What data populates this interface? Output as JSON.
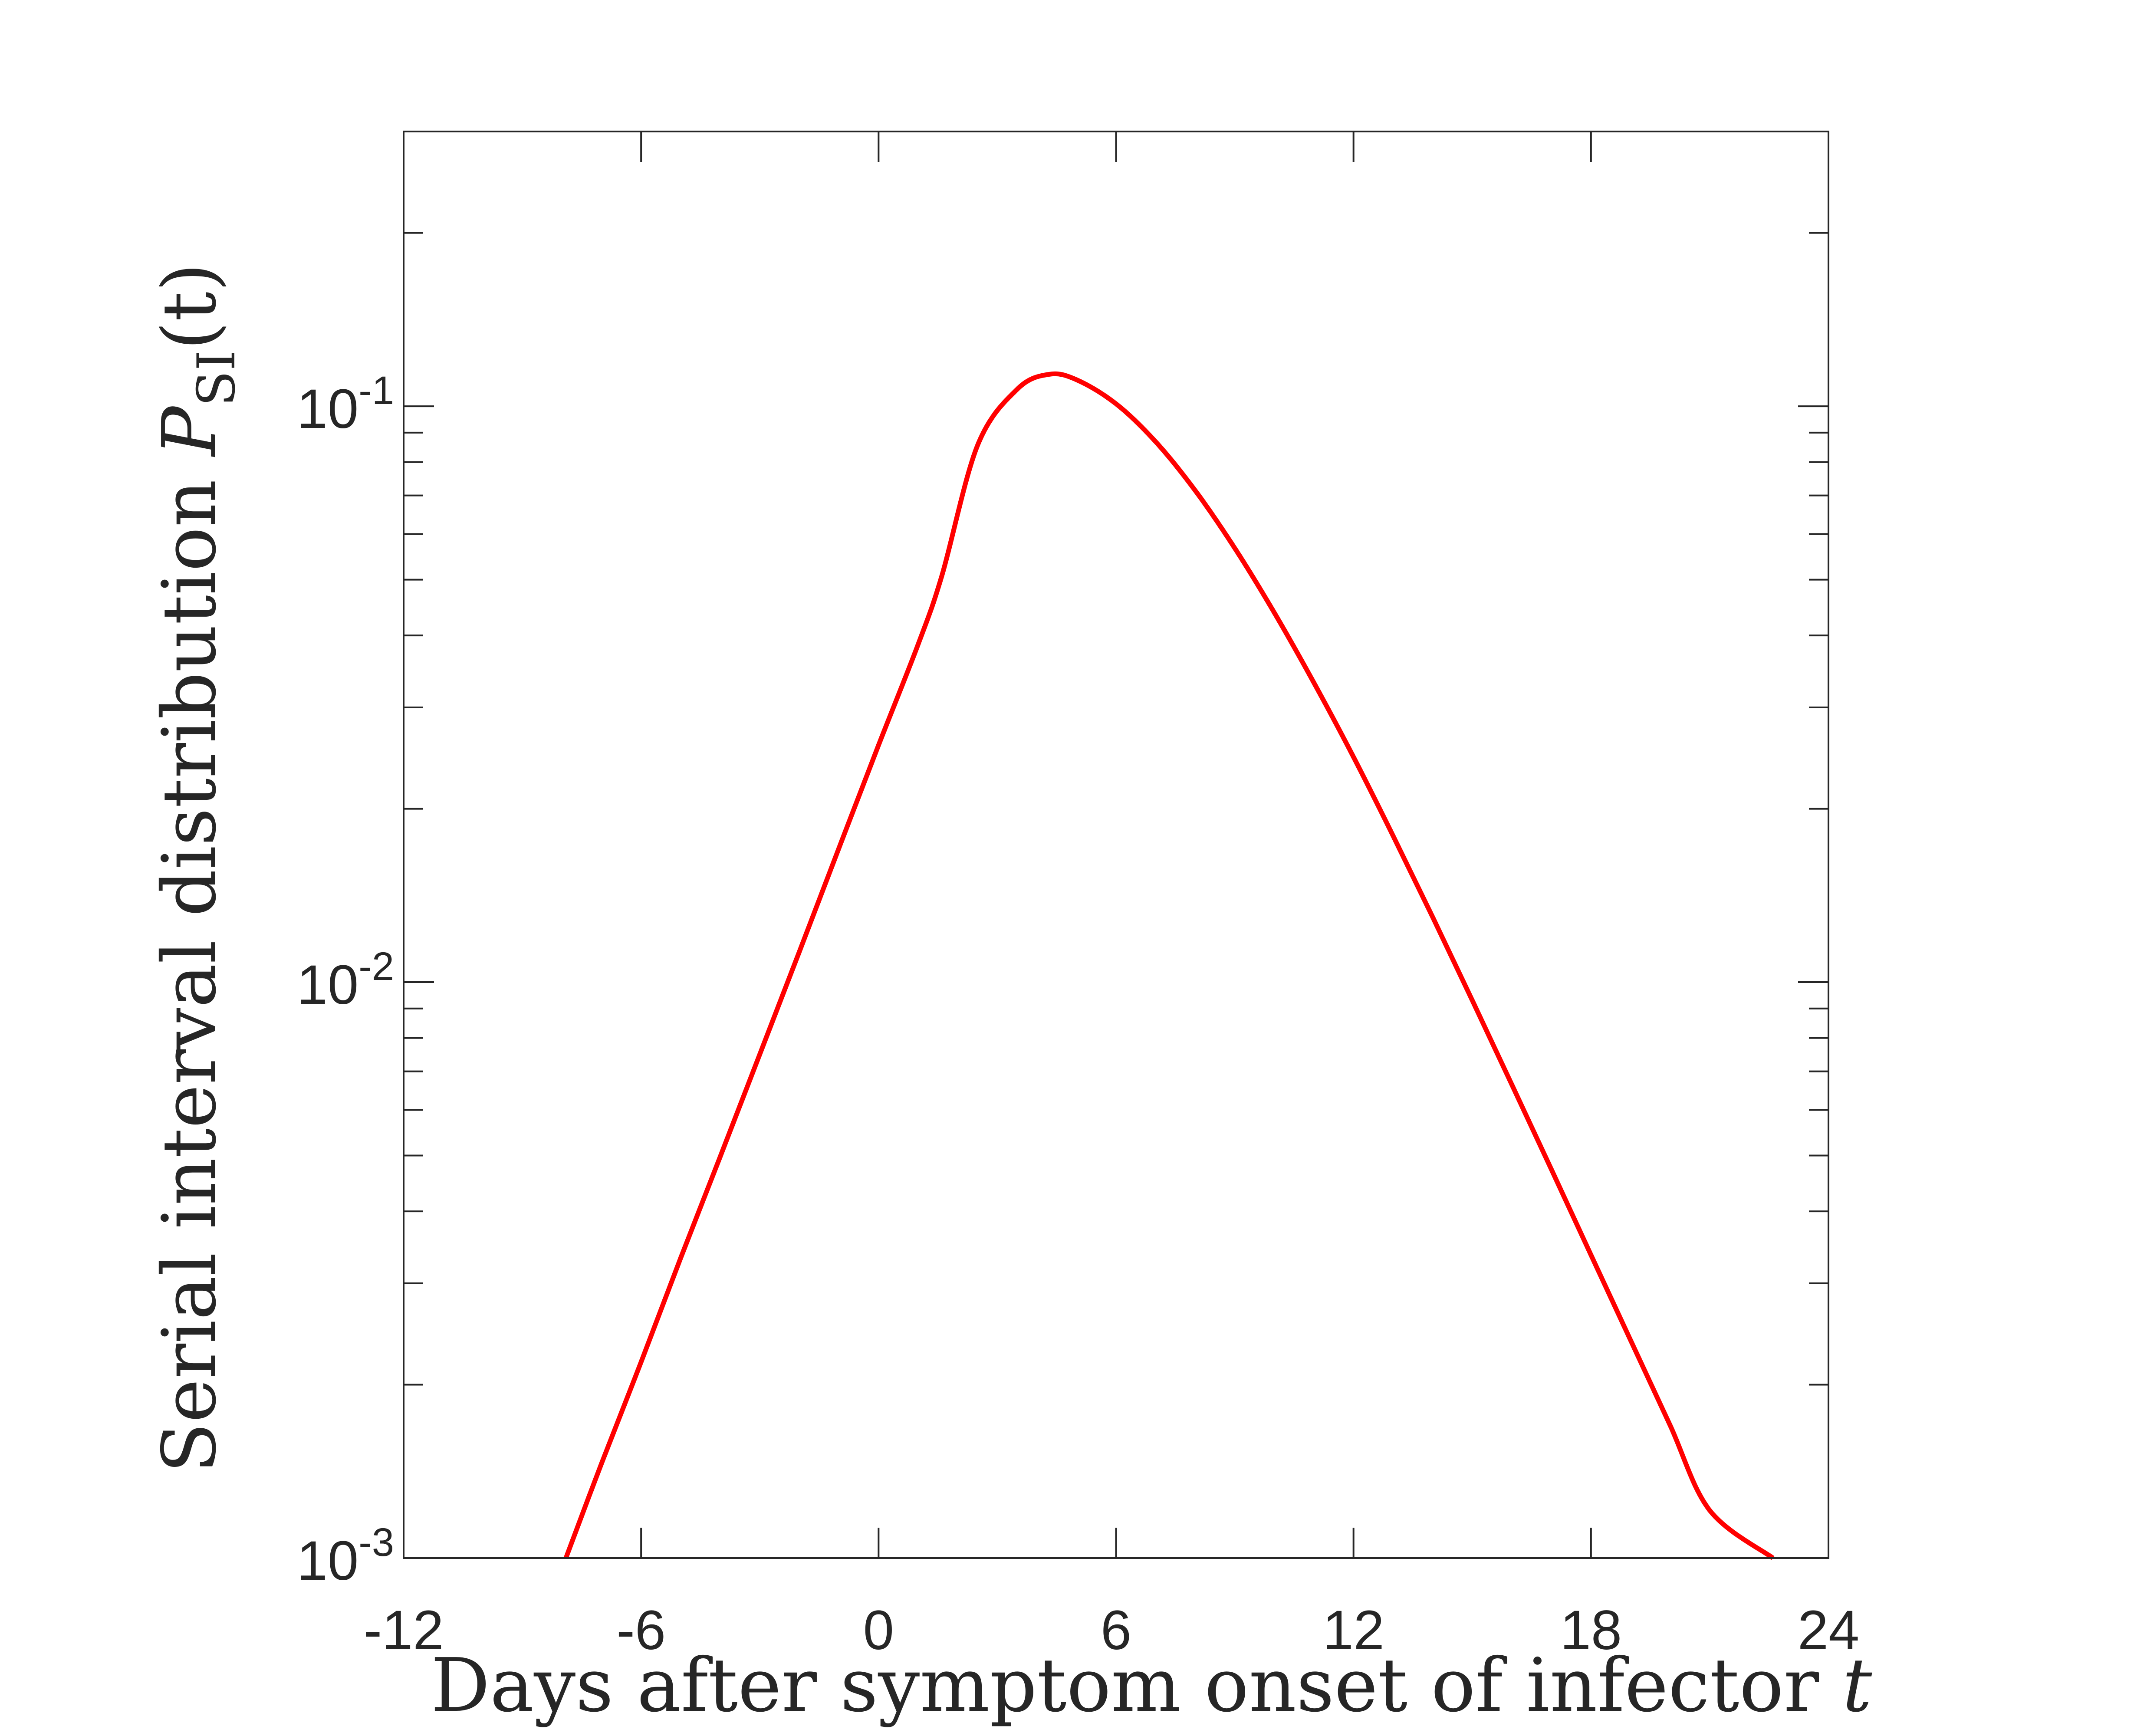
{
  "chart_data": {
    "type": "line",
    "xlabel_text": "Days after symptom onset of infector",
    "xlabel_var": "t",
    "ylabel_text": "Serial interval distribution",
    "ylabel_symbol": "P",
    "ylabel_subscript": "SI",
    "ylabel_arg": "(t)",
    "xlim": [
      -12,
      24
    ],
    "ylim": [
      0.001,
      0.3
    ],
    "yscale": "log",
    "grid": false,
    "x_ticks": [
      -12,
      -6,
      0,
      6,
      12,
      18,
      24
    ],
    "x_tick_labels": [
      "-12",
      "-6",
      "0",
      "6",
      "12",
      "18",
      "24"
    ],
    "y_ticks": [
      0.001,
      0.01,
      0.1
    ],
    "y_tick_labels": [
      {
        "base": "10",
        "exp": "-3"
      },
      {
        "base": "10",
        "exp": "-2"
      },
      {
        "base": "10",
        "exp": "-1"
      }
    ],
    "series": [
      {
        "color": "#ff0000",
        "x": [
          -7.9,
          -7,
          -6,
          -5,
          -4,
          -3,
          -2,
          -1,
          0,
          1,
          1.6,
          2.5,
          3.5,
          4.3,
          5,
          6,
          7,
          8,
          9,
          10,
          11,
          12,
          13,
          14,
          15,
          16,
          17,
          18,
          19,
          20,
          21,
          22.6
        ],
        "y": [
          0.001,
          0.00146,
          0.00219,
          0.00332,
          0.00498,
          0.0075,
          0.0113,
          0.0171,
          0.0258,
          0.0386,
          0.0508,
          0.0855,
          0.107,
          0.1136,
          0.1112,
          0.101,
          0.0868,
          0.0714,
          0.0567,
          0.0438,
          0.0331,
          0.0246,
          0.01795,
          0.01297,
          0.0093,
          0.00664,
          0.00473,
          0.00336,
          0.00239,
          0.0017,
          0.00121,
          0.001
        ]
      }
    ]
  }
}
